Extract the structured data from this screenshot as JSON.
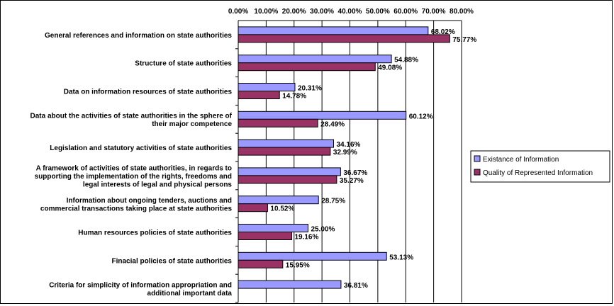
{
  "chart_data": {
    "type": "bar",
    "orientation": "horizontal",
    "title": "",
    "xlabel": "",
    "ylabel": "",
    "xlim": [
      0,
      80
    ],
    "x_ticks": [
      "0.00%",
      "10.00%",
      "20.00%",
      "30.00%",
      "40.00%",
      "50.00%",
      "60.00%",
      "70.00%",
      "80.00%"
    ],
    "x_axis_position": "top",
    "grid": true,
    "legend_position": "right",
    "categories": [
      [
        "General references and information on state authorities"
      ],
      [
        "Structure of state authorities"
      ],
      [
        "Data on information resources of state authorities"
      ],
      [
        "Data about the activities of state authorities in the sphere of",
        "their major competence"
      ],
      [
        "Legislation and statutory activities of state authorities"
      ],
      [
        "A framework of activities of state authorities, in regards to",
        "supporting the implementation of the rights, freedoms and",
        "legal interests of legal and physical persons"
      ],
      [
        "Information about ongoing tenders, auctions and",
        "commercial transactions taking place at state authorities"
      ],
      [
        "Human resources policies of state authorities"
      ],
      [
        "Finacial policies of  state authorities"
      ],
      [
        "Criteria for simplicity of information appropriation and",
        "additional important data"
      ]
    ],
    "series": [
      {
        "name": "Existance of Information",
        "color": "#9999ff",
        "values": [
          68.02,
          54.88,
          20.31,
          60.12,
          34.16,
          36.67,
          28.75,
          25.0,
          53.13,
          36.81
        ],
        "labels": [
          "68.02%",
          "54.88%",
          "20.31%",
          "60.12%",
          "34.16%",
          "36.67%",
          "28.75%",
          "25.00%",
          "53.13%",
          "36.81%"
        ]
      },
      {
        "name": "Quality of Represented Information",
        "color": "#993366",
        "values": [
          75.77,
          49.08,
          14.78,
          28.49,
          32.99,
          35.27,
          10.52,
          19.16,
          15.95,
          null
        ],
        "labels": [
          "75.77%",
          "49.08%",
          "14.78%",
          "28.49%",
          "32.99%",
          "35.27%",
          "10.52%",
          "19.16%",
          "15.95%",
          null
        ]
      }
    ]
  }
}
